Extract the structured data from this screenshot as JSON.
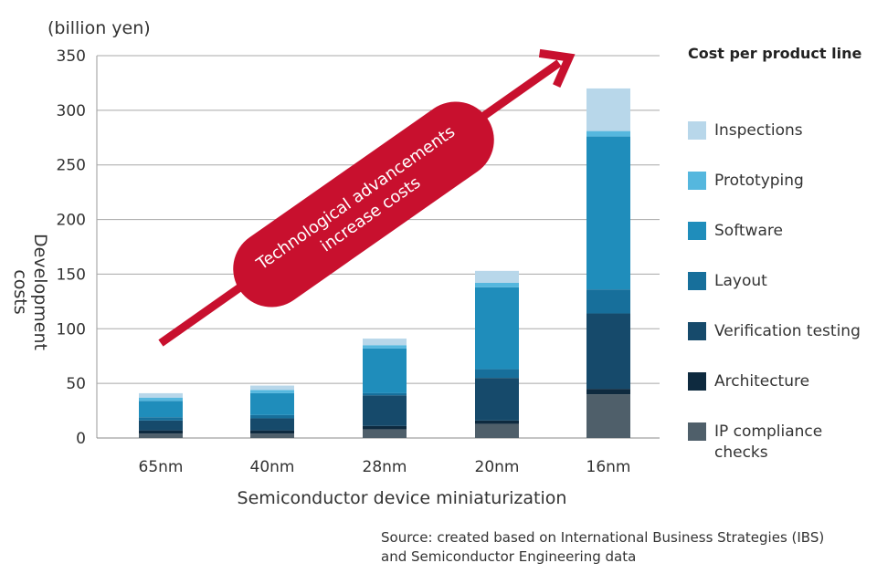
{
  "chart_data": {
    "type": "bar",
    "stacked": true,
    "unit_label": "(billion yen)",
    "xlabel": "Semiconductor device miniaturization",
    "ylabel": "Development costs",
    "ylim": [
      0,
      350
    ],
    "yticks": [
      0,
      50,
      100,
      150,
      200,
      250,
      300,
      350
    ],
    "grid": true,
    "categories": [
      "65nm",
      "40nm",
      "28nm",
      "20nm",
      "16nm"
    ],
    "legend_title": "Cost per product line",
    "legend_position": "right",
    "series": [
      {
        "name": "IP compliance checks",
        "color": "#4f5f6a",
        "values": [
          4,
          4,
          8,
          13,
          40
        ]
      },
      {
        "name": "Architecture",
        "color": "#0e2a3f",
        "values": [
          3,
          3,
          3,
          3,
          5
        ]
      },
      {
        "name": "Verification testing",
        "color": "#164a6b",
        "values": [
          9,
          11,
          28,
          39,
          69
        ]
      },
      {
        "name": "Layout",
        "color": "#176f9b",
        "values": [
          3,
          3,
          2,
          8,
          22
        ]
      },
      {
        "name": "Software",
        "color": "#1f8dbb",
        "values": [
          15,
          20,
          41,
          75,
          140
        ]
      },
      {
        "name": "Prototyping",
        "color": "#55b7de",
        "values": [
          3,
          3,
          3,
          4,
          5
        ]
      },
      {
        "name": "Inspections",
        "color": "#b8d7ea",
        "values": [
          4,
          4,
          6,
          11,
          39
        ]
      }
    ],
    "annotation": "Technological advancements increase costs",
    "annotation_color": "#c8102e",
    "source": [
      "Source: created based on International Business Strategies (IBS)",
      "and Semiconductor Engineering data"
    ]
  }
}
